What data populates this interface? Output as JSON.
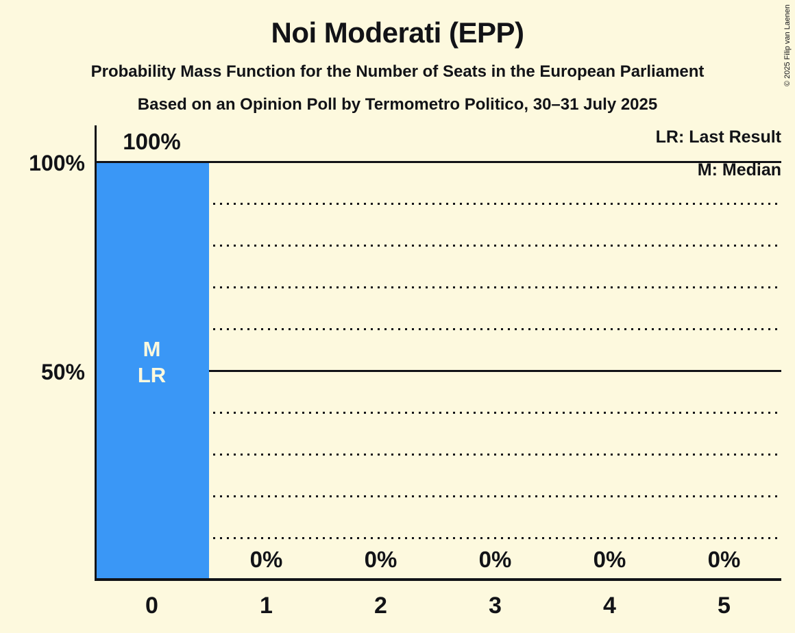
{
  "meta": {
    "copyright": "© 2025 Filip van Laenen"
  },
  "header": {
    "title": "Noi Moderati (EPP)",
    "subtitle1": "Probability Mass Function for the Number of Seats in the European Parliament",
    "subtitle2": "Based on an Opinion Poll by Termometro Politico, 30–31 July 2025"
  },
  "legend": {
    "lr": "LR: Last Result",
    "m": "M: Median"
  },
  "chart_data": {
    "type": "bar",
    "title": "Noi Moderati (EPP)",
    "xlabel": "",
    "ylabel": "",
    "categories": [
      "0",
      "1",
      "2",
      "3",
      "4",
      "5"
    ],
    "values": [
      100,
      0,
      0,
      0,
      0,
      0
    ],
    "value_labels": [
      "100%",
      "0%",
      "0%",
      "0%",
      "0%",
      "0%"
    ],
    "ylim": [
      0,
      100
    ],
    "yticks": [
      {
        "value": 100,
        "label": "100%"
      },
      {
        "value": 50,
        "label": "50%"
      }
    ],
    "gridlines": {
      "dotted": [
        10,
        20,
        30,
        40,
        60,
        70,
        80,
        90
      ],
      "solid": [
        50,
        100
      ]
    },
    "annotation": {
      "index": 0,
      "lines": [
        "M",
        "LR"
      ],
      "meaning": [
        "Median",
        "Last Result"
      ]
    },
    "legend_position": "top-right",
    "colors": {
      "bar": "#3A97F6",
      "background": "#FDF9DE",
      "text": "#121317",
      "bar_inner_text": "#FDF9DE"
    }
  }
}
